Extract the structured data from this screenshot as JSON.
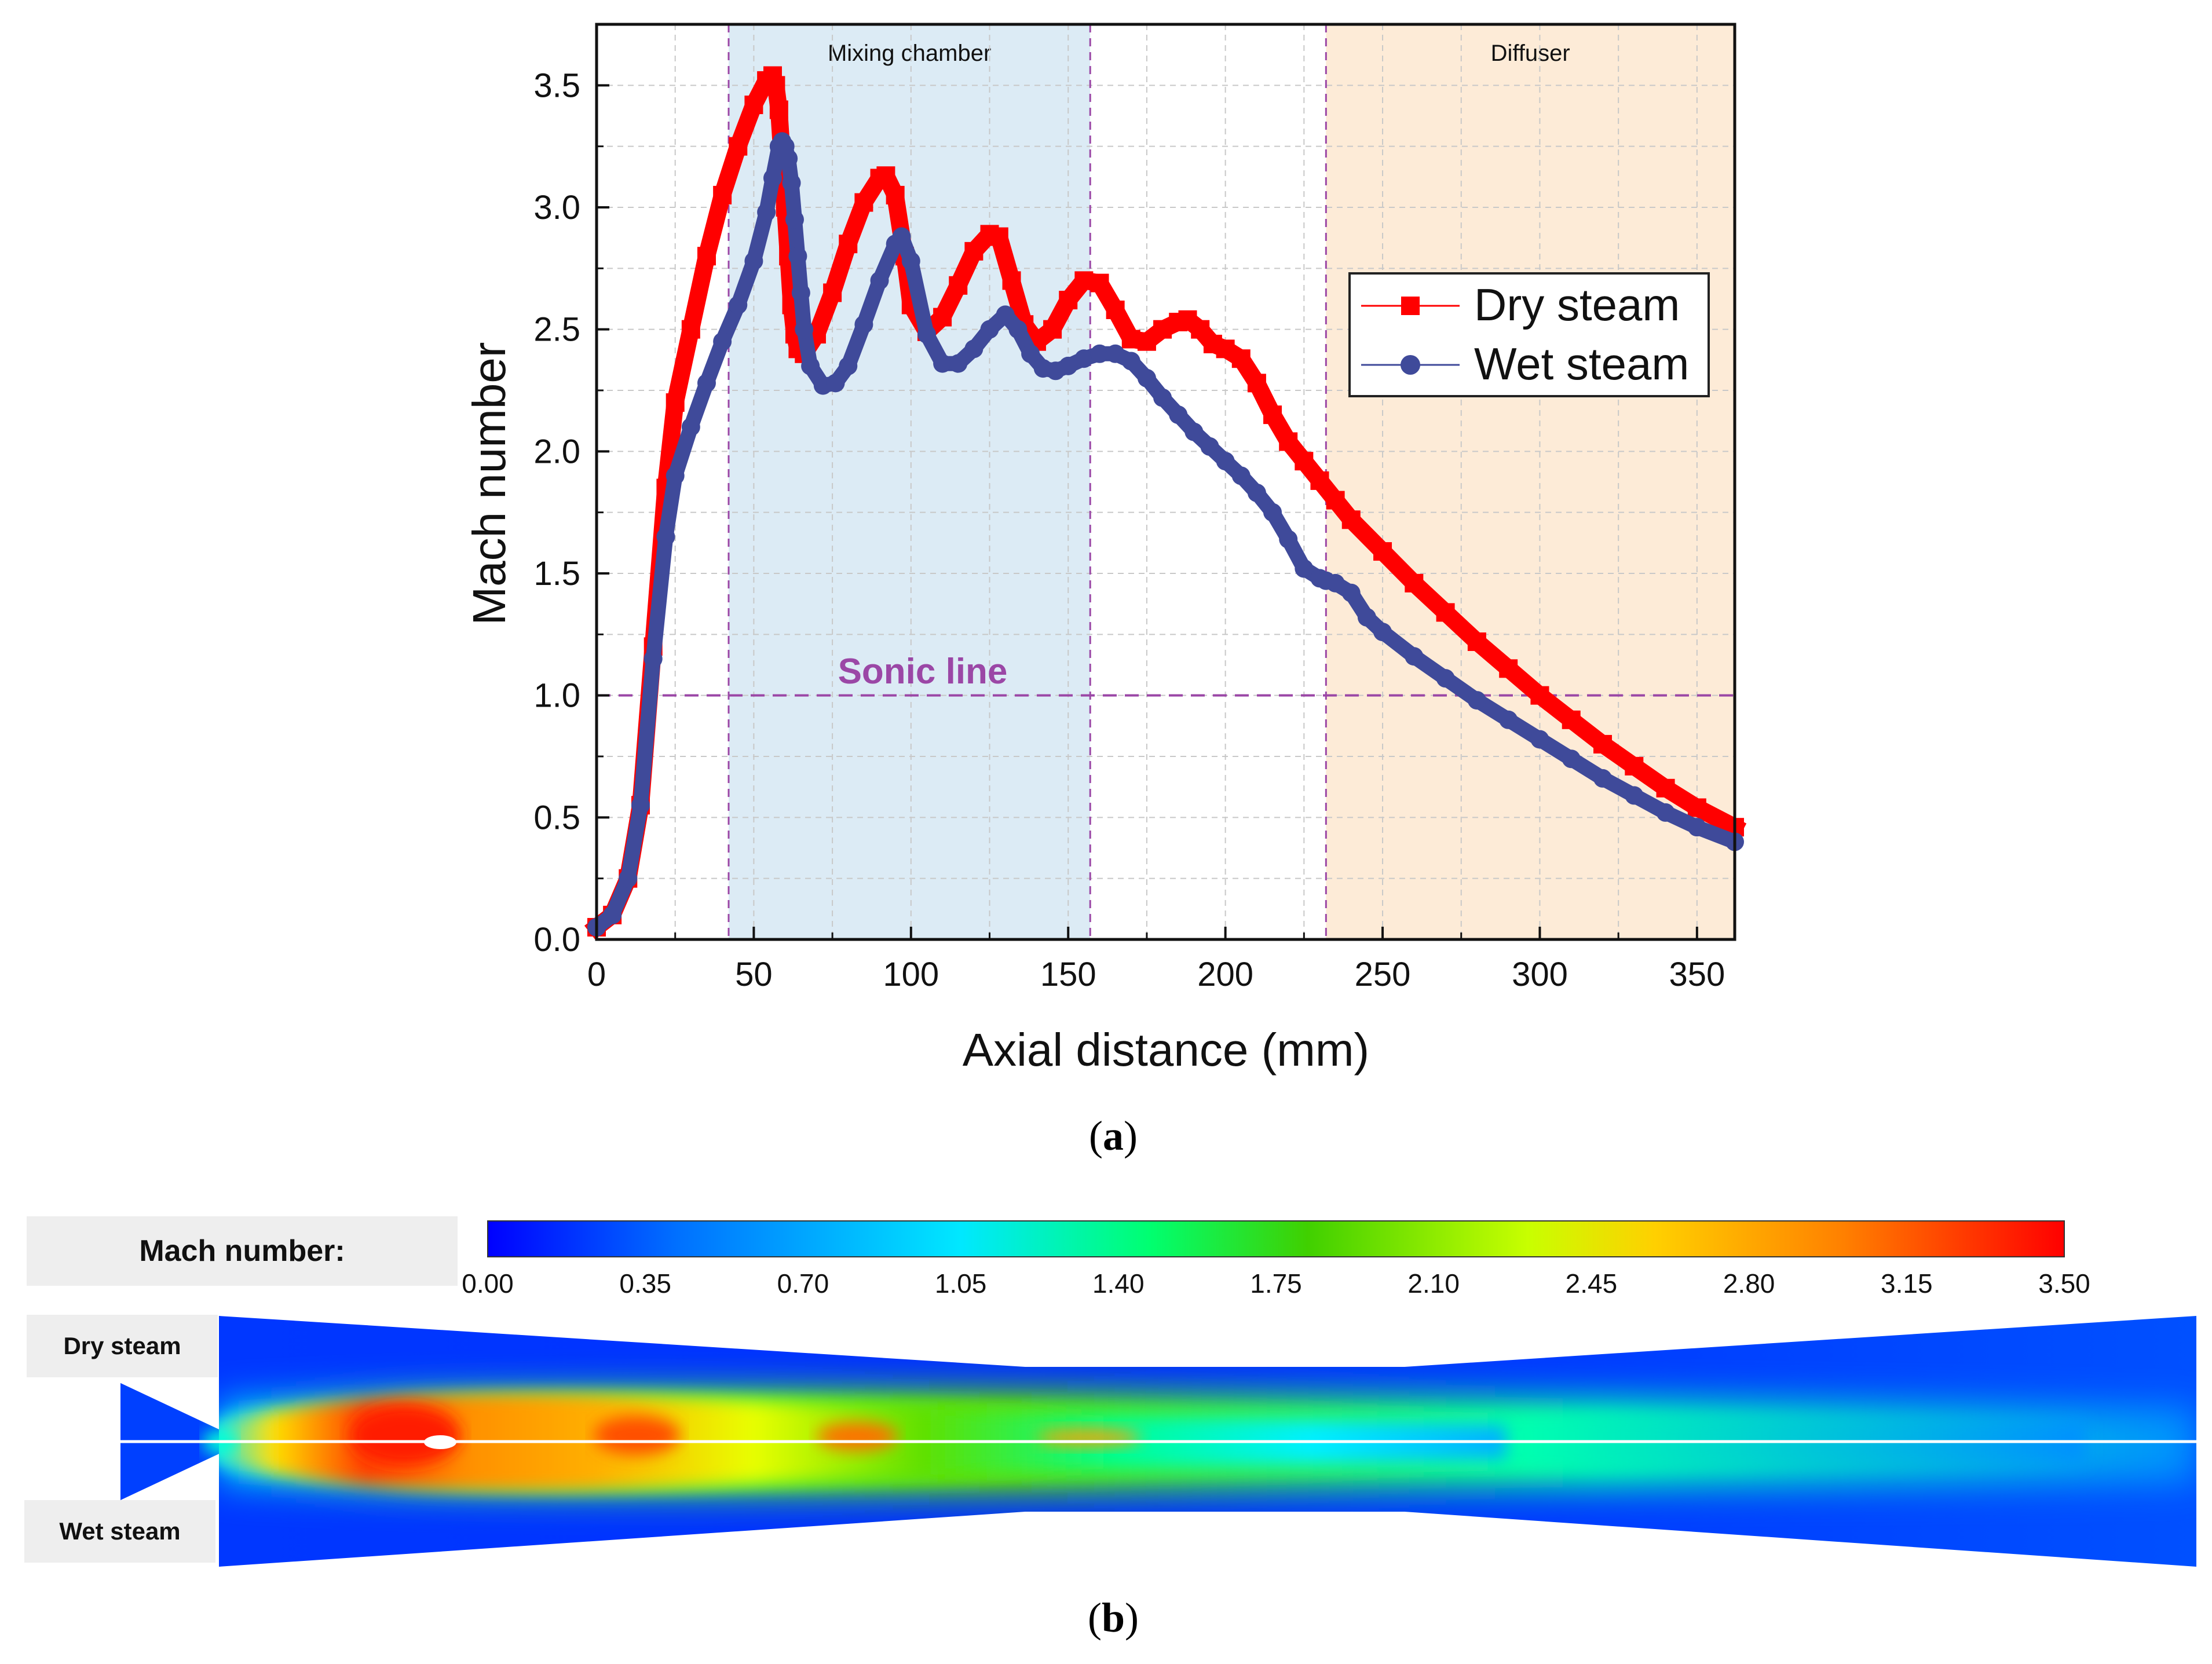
{
  "chart_data": [
    {
      "type": "line",
      "panel": "a",
      "xlabel": "Axial distance (mm)",
      "ylabel": "Mach number",
      "xlim": [
        0,
        362
      ],
      "ylim": [
        0,
        3.75
      ],
      "xticks": [
        0,
        50,
        100,
        150,
        200,
        250,
        300,
        350
      ],
      "yticks": [
        0.0,
        0.5,
        1.0,
        1.5,
        2.0,
        2.5,
        3.0,
        3.5
      ],
      "xtick_labels": [
        "0",
        "50",
        "100",
        "150",
        "200",
        "250",
        "300",
        "350"
      ],
      "ytick_labels": [
        "0.0",
        "0.5",
        "1.0",
        "1.5",
        "2.0",
        "2.5",
        "3.0",
        "3.5"
      ],
      "regions": [
        {
          "label": "Mixing chamber",
          "x_start": 42,
          "x_end": 157,
          "color": "#dcebf5"
        },
        {
          "label": "Diffuser",
          "x_start": 232,
          "x_end": 362,
          "color": "#fdebd7"
        }
      ],
      "reference_line": {
        "label": "Sonic line",
        "y": 1.0,
        "color": "#9b47a6"
      },
      "legend_position": "upper-right",
      "series": [
        {
          "name": "Dry steam",
          "color": "#ff0000",
          "marker": "square",
          "x": [
            0,
            5,
            10,
            14,
            18,
            22,
            25,
            30,
            35,
            40,
            45,
            50,
            54,
            56,
            57,
            58,
            59,
            60,
            61,
            62,
            63,
            64,
            66,
            70,
            75,
            80,
            85,
            90,
            92,
            95,
            98,
            100,
            105,
            110,
            115,
            120,
            125,
            128,
            132,
            136,
            140,
            145,
            150,
            155,
            160,
            165,
            170,
            175,
            180,
            185,
            188,
            192,
            196,
            200,
            205,
            210,
            215,
            220,
            225,
            230,
            235,
            240,
            250,
            260,
            270,
            280,
            290,
            300,
            310,
            320,
            330,
            340,
            350,
            362
          ],
          "y": [
            0.05,
            0.1,
            0.25,
            0.55,
            1.2,
            1.85,
            2.2,
            2.5,
            2.8,
            3.05,
            3.25,
            3.42,
            3.52,
            3.54,
            3.5,
            3.4,
            3.2,
            3.0,
            2.8,
            2.6,
            2.48,
            2.42,
            2.4,
            2.48,
            2.65,
            2.85,
            3.02,
            3.12,
            3.13,
            3.05,
            2.8,
            2.6,
            2.49,
            2.55,
            2.68,
            2.82,
            2.89,
            2.88,
            2.7,
            2.52,
            2.45,
            2.5,
            2.62,
            2.7,
            2.69,
            2.58,
            2.46,
            2.45,
            2.5,
            2.53,
            2.54,
            2.5,
            2.44,
            2.42,
            2.38,
            2.28,
            2.15,
            2.04,
            1.96,
            1.88,
            1.8,
            1.72,
            1.59,
            1.46,
            1.34,
            1.22,
            1.11,
            1.0,
            0.9,
            0.8,
            0.71,
            0.62,
            0.54,
            0.46
          ]
        },
        {
          "name": "Wet steam",
          "color": "#3f4a9a",
          "marker": "circle",
          "x": [
            0,
            5,
            10,
            14,
            18,
            22,
            25,
            30,
            35,
            40,
            45,
            50,
            54,
            56,
            58,
            59,
            60,
            61,
            62,
            63,
            64,
            65,
            66,
            68,
            72,
            76,
            80,
            85,
            90,
            95,
            97,
            100,
            105,
            110,
            115,
            120,
            125,
            130,
            134,
            138,
            142,
            146,
            150,
            155,
            160,
            165,
            170,
            175,
            180,
            185,
            190,
            195,
            200,
            205,
            210,
            215,
            220,
            225,
            230,
            232,
            235,
            240,
            245,
            250,
            260,
            270,
            280,
            290,
            300,
            310,
            320,
            330,
            340,
            350,
            362
          ],
          "y": [
            0.05,
            0.1,
            0.25,
            0.55,
            1.15,
            1.65,
            1.9,
            2.1,
            2.28,
            2.45,
            2.6,
            2.78,
            2.98,
            3.12,
            3.25,
            3.27,
            3.25,
            3.2,
            3.1,
            2.95,
            2.8,
            2.65,
            2.5,
            2.35,
            2.27,
            2.28,
            2.35,
            2.52,
            2.7,
            2.85,
            2.88,
            2.78,
            2.48,
            2.36,
            2.36,
            2.42,
            2.5,
            2.56,
            2.5,
            2.4,
            2.34,
            2.33,
            2.35,
            2.38,
            2.4,
            2.4,
            2.37,
            2.3,
            2.22,
            2.15,
            2.08,
            2.02,
            1.96,
            1.9,
            1.83,
            1.75,
            1.64,
            1.52,
            1.48,
            1.47,
            1.46,
            1.42,
            1.32,
            1.26,
            1.16,
            1.07,
            0.98,
            0.9,
            0.82,
            0.74,
            0.66,
            0.59,
            0.52,
            0.46,
            0.4
          ]
        }
      ]
    },
    {
      "type": "heatmap",
      "panel": "b",
      "title": "Mach number:",
      "colorbar_ticks": [
        "0.00",
        "0.35",
        "0.70",
        "1.05",
        "1.40",
        "1.75",
        "2.10",
        "2.45",
        "2.80",
        "3.15",
        "3.50"
      ],
      "colorbar_range": [
        0.0,
        3.5
      ],
      "colorbar_colors": [
        "#0000ff",
        "#0070ff",
        "#00e8ff",
        "#00ff70",
        "#40d000",
        "#c8ff00",
        "#ffd000",
        "#ff8000",
        "#ff0000"
      ],
      "halves": [
        "Dry steam",
        "Wet steam"
      ]
    }
  ],
  "captions": {
    "a": "a",
    "b": "b"
  }
}
